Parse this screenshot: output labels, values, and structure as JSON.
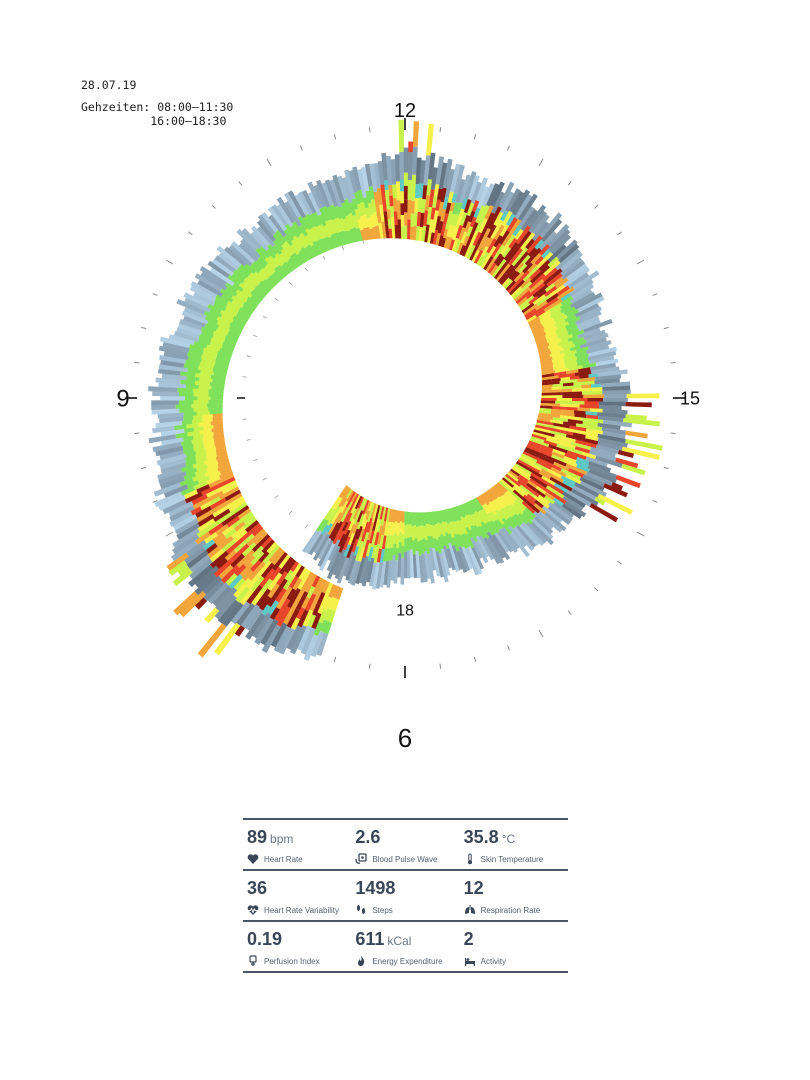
{
  "header": {
    "date": "28.07.19",
    "walk_label": "Gehzeiten:",
    "walk_times": [
      "08:00–11:30",
      "16:00–18:30"
    ]
  },
  "chart_data": {
    "type": "radial-bar",
    "title": "",
    "clock_labels": [
      {
        "text": "12",
        "hour": 12
      },
      {
        "text": "15",
        "hour": 15
      },
      {
        "text": "18",
        "hour": 18
      },
      {
        "text": "6",
        "hour": 6
      },
      {
        "text": "9",
        "hour": 9
      }
    ],
    "start_hour": 6.6,
    "end_hour": 19.1,
    "inner_radius": "growing spiral",
    "colors": {
      "low": "#b6d3e8",
      "dark": "#2f3b47",
      "green": "#7fe05a",
      "lime": "#c8f24a",
      "yellow": "#f5f04a",
      "orange": "#f2a53a",
      "red": "#e8452a",
      "darkred": "#8b1a10",
      "teal": "#5cc9c5"
    },
    "intensity_profile": [
      {
        "hour": 6.6,
        "level": 0.55
      },
      {
        "hour": 7.0,
        "level": 0.85
      },
      {
        "hour": 7.5,
        "level": 0.95
      },
      {
        "hour": 8.0,
        "level": 0.7
      },
      {
        "hour": 8.5,
        "level": 0.5
      },
      {
        "hour": 9.0,
        "level": 0.42
      },
      {
        "hour": 9.5,
        "level": 0.38
      },
      {
        "hour": 10.0,
        "level": 0.3
      },
      {
        "hour": 10.5,
        "level": 0.28
      },
      {
        "hour": 11.0,
        "level": 0.35
      },
      {
        "hour": 11.5,
        "level": 0.45
      },
      {
        "hour": 12.0,
        "level": 0.9
      },
      {
        "hour": 12.5,
        "level": 0.6
      },
      {
        "hour": 13.0,
        "level": 0.8
      },
      {
        "hour": 13.5,
        "level": 0.75
      },
      {
        "hour": 14.0,
        "level": 0.6
      },
      {
        "hour": 14.5,
        "level": 0.5
      },
      {
        "hour": 15.0,
        "level": 0.85
      },
      {
        "hour": 15.5,
        "level": 0.9
      },
      {
        "hour": 16.0,
        "level": 0.85
      },
      {
        "hour": 16.5,
        "level": 0.55
      },
      {
        "hour": 17.0,
        "level": 0.38
      },
      {
        "hour": 17.5,
        "level": 0.35
      },
      {
        "hour": 18.0,
        "level": 0.45
      },
      {
        "hour": 18.5,
        "level": 0.8
      },
      {
        "hour": 19.1,
        "level": 0.6
      }
    ]
  },
  "stats": [
    [
      {
        "value": "89",
        "unit": "bpm",
        "label": "Heart Rate",
        "icon": "heart-icon"
      },
      {
        "value": "2.6",
        "unit": "",
        "label": "Blood Pulse Wave",
        "icon": "pulse-wave-icon"
      },
      {
        "value": "35.8",
        "unit": "°C",
        "label": "Skin Temperature",
        "icon": "thermometer-icon"
      }
    ],
    [
      {
        "value": "36",
        "unit": "",
        "label": "Heart Rate Variability",
        "icon": "heart-rate-variability-icon"
      },
      {
        "value": "1498",
        "unit": "",
        "label": "Steps",
        "icon": "footsteps-icon"
      },
      {
        "value": "12",
        "unit": "",
        "label": "Respiration Rate",
        "icon": "lungs-icon"
      }
    ],
    [
      {
        "value": "0.19",
        "unit": "",
        "label": "Perfusion Index",
        "icon": "perfusion-icon"
      },
      {
        "value": "611",
        "unit": "kCal",
        "label": "Energy Expenditure",
        "icon": "flame-icon"
      },
      {
        "value": "2",
        "unit": "",
        "label": "Activity",
        "icon": "bed-icon"
      }
    ]
  ]
}
